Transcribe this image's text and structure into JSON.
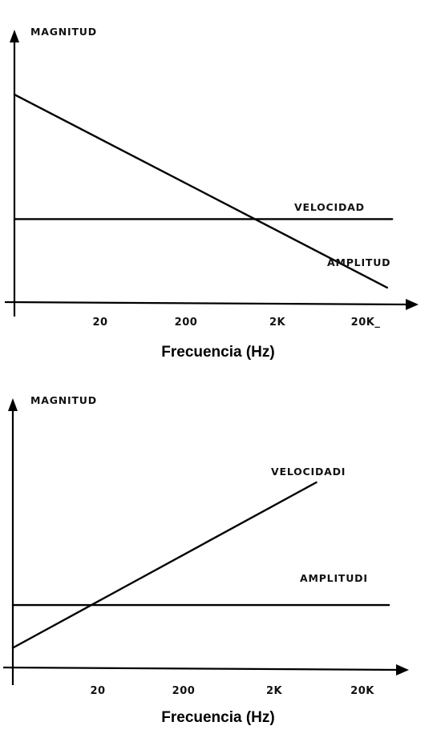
{
  "chart_data": [
    {
      "type": "line",
      "ylabel": "MAGNITUD",
      "xlabel": "Frecuencia (Hz)",
      "x_ticks": [
        "20",
        "200",
        "2K",
        "20K_"
      ],
      "x_scale": "log",
      "series": [
        {
          "name": "VELOCIDAD",
          "shape": "flat",
          "x": [
            2,
            40000
          ],
          "y": [
            0.4,
            0.4
          ]
        },
        {
          "name": "AMPLITUD",
          "shape": "decreasing",
          "x": [
            2,
            35000
          ],
          "y": [
            1.0,
            0.07
          ]
        }
      ]
    },
    {
      "type": "line",
      "ylabel": "MAGNITUD",
      "xlabel": "Frecuencia (Hz)",
      "x_ticks": [
        "20",
        "200",
        "2K",
        "20K"
      ],
      "x_scale": "log",
      "series": [
        {
          "name": "VELOCIDADI",
          "shape": "increasing",
          "x": [
            2,
            6000
          ],
          "y": [
            0.11,
            1.0
          ]
        },
        {
          "name": "AMPLITUDI",
          "shape": "flat",
          "x": [
            2,
            40000
          ],
          "y": [
            0.34,
            0.34
          ]
        }
      ]
    }
  ]
}
